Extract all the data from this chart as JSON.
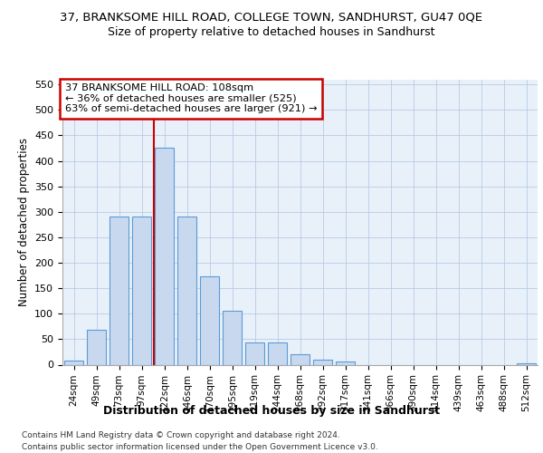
{
  "title": "37, BRANKSOME HILL ROAD, COLLEGE TOWN, SANDHURST, GU47 0QE",
  "subtitle": "Size of property relative to detached houses in Sandhurst",
  "xlabel": "Distribution of detached houses by size in Sandhurst",
  "ylabel": "Number of detached properties",
  "categories": [
    "24sqm",
    "49sqm",
    "73sqm",
    "97sqm",
    "122sqm",
    "146sqm",
    "170sqm",
    "195sqm",
    "219sqm",
    "244sqm",
    "268sqm",
    "292sqm",
    "317sqm",
    "341sqm",
    "366sqm",
    "390sqm",
    "414sqm",
    "439sqm",
    "463sqm",
    "488sqm",
    "512sqm"
  ],
  "values": [
    8,
    68,
    290,
    290,
    425,
    290,
    173,
    105,
    43,
    43,
    20,
    10,
    6,
    0,
    0,
    0,
    0,
    0,
    0,
    0,
    3
  ],
  "bar_color": "#c8d9ef",
  "bar_edge_color": "#5b9bd5",
  "vline_color": "#cc0000",
  "annotation_text": "37 BRANKSOME HILL ROAD: 108sqm\n← 36% of detached houses are smaller (525)\n63% of semi-detached houses are larger (921) →",
  "annotation_box_color": "#ffffff",
  "annotation_box_edge": "#cc0000",
  "ylim": [
    0,
    560
  ],
  "yticks": [
    0,
    50,
    100,
    150,
    200,
    250,
    300,
    350,
    400,
    450,
    500,
    550
  ],
  "footer_line1": "Contains HM Land Registry data © Crown copyright and database right 2024.",
  "footer_line2": "Contains public sector information licensed under the Open Government Licence v3.0.",
  "plot_bg_color": "#e8f0fa"
}
